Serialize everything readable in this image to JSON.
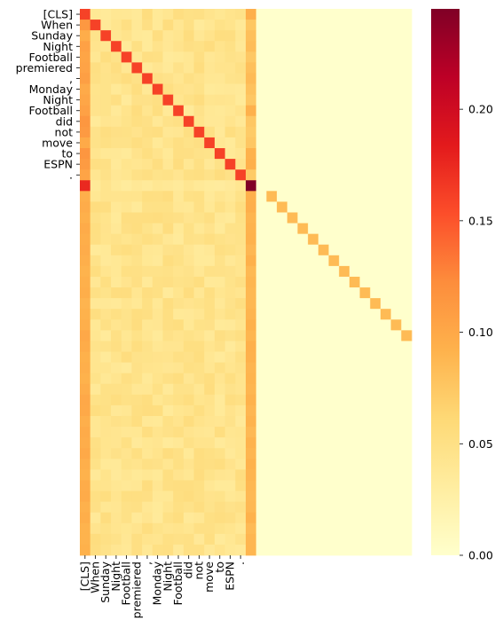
{
  "chart_data": {
    "type": "heatmap",
    "title": "",
    "xlabel": "",
    "ylabel": "",
    "n_rows": 51,
    "n_cols": 32,
    "row_tick_labels": [
      "[CLS]",
      "When",
      "Sunday",
      "Night",
      "Football",
      "premiered",
      ",",
      "Monday",
      "Night",
      "Football",
      "did",
      "not",
      "move",
      "to",
      "ESPN",
      "."
    ],
    "col_tick_labels": [
      "[CLS]",
      "When",
      "Sunday",
      "Night",
      "Football",
      "premiered",
      ",",
      "Monday",
      "Night",
      "Football",
      "did",
      "not",
      "move",
      "to",
      "ESPN",
      "."
    ],
    "colormap": "YlOrRd",
    "vmin": 0.0,
    "vmax": 0.245,
    "colorbar_ticks": [
      0.0,
      0.05,
      0.1,
      0.15,
      0.2
    ],
    "colorbar_tick_labels": [
      "0.00",
      "0.05",
      "0.10",
      "0.15",
      "0.20"
    ],
    "matrix_description": {
      "token_count": 16,
      "diagonal_token_value": 0.16,
      "cls_column_value": 0.105,
      "token_background": [
        0.035,
        0.055
      ],
      "sep_row": {
        "row": 16,
        "cls_value": 0.175,
        "sep_value": 0.245,
        "background": 0.03
      },
      "sep_column": {
        "col": 16,
        "value": 0.085
      },
      "pad_rows_diagonal_value": 0.085,
      "pad_rows_cls_value": 0.09,
      "pad_region_value": 0.0
    }
  }
}
